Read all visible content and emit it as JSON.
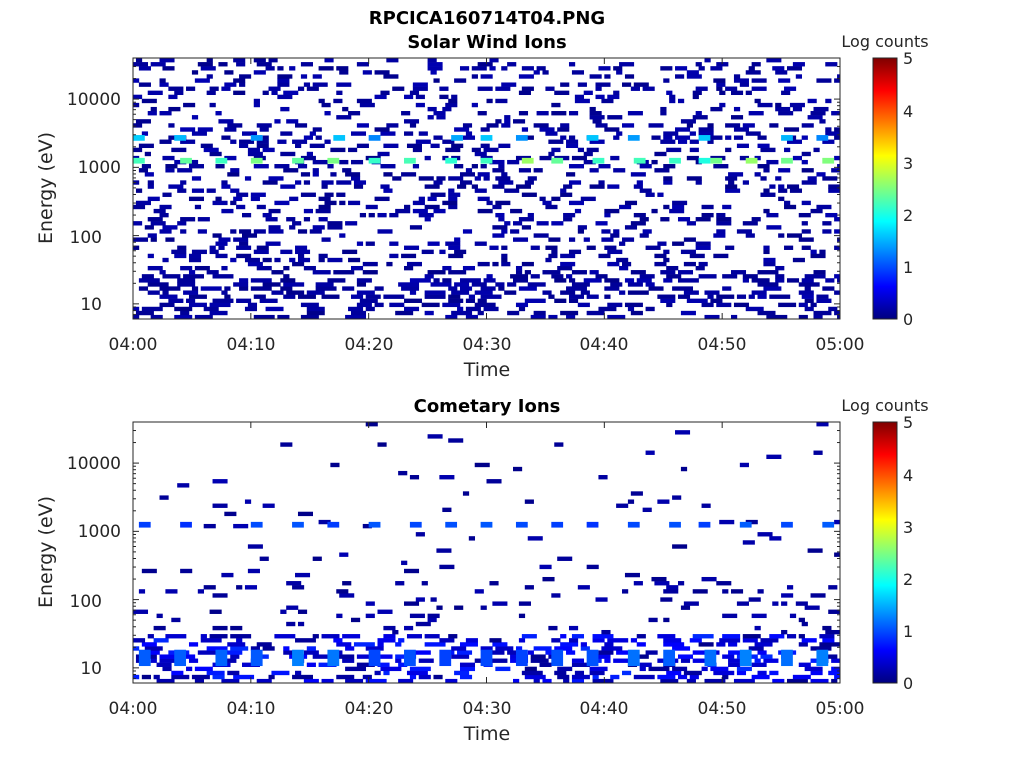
{
  "figure_title": "RPCICA160714T04.PNG",
  "colormap": [
    "#00007f",
    "#0000ff",
    "#007fff",
    "#00ffff",
    "#7fff7f",
    "#ffff00",
    "#ff7f00",
    "#ff0000",
    "#7f0000"
  ],
  "chart_data": [
    {
      "type": "heatmap",
      "title": "Solar Wind Ions",
      "xlabel": "Time",
      "ylabel": "Energy (eV)",
      "x_ticks": [
        "04:00",
        "04:10",
        "04:20",
        "04:30",
        "04:40",
        "04:50",
        "05:00"
      ],
      "y_ticks": [
        "10",
        "100",
        "1000",
        "10000"
      ],
      "y_scale": "log",
      "ylim": [
        6,
        40000
      ],
      "colorbar": {
        "label": "Log counts",
        "ticks": [
          "0",
          "1",
          "2",
          "3",
          "4",
          "5"
        ],
        "range": [
          0,
          5
        ]
      },
      "intensity_rows": [
        {
          "energy_ev": 1250,
          "minutes": [
            0.5,
            4.5,
            7.5,
            10.5,
            14,
            17,
            20.5,
            23.5,
            27,
            30,
            33.5,
            36,
            39.5,
            43,
            46,
            48.5,
            49.5,
            52.5,
            55.5,
            59
          ],
          "level": 2.3
        },
        {
          "energy_ev": 2700,
          "minutes": [
            0.5,
            4,
            10.5,
            17.5,
            20.5,
            27.5,
            30,
            33,
            39,
            42.5,
            48.5,
            55.5,
            58.5
          ],
          "level": 1.5
        }
      ]
    },
    {
      "type": "heatmap",
      "title": "Cometary Ions",
      "xlabel": "Time",
      "ylabel": "Energy (eV)",
      "x_ticks": [
        "04:00",
        "04:10",
        "04:20",
        "04:30",
        "04:40",
        "04:50",
        "05:00"
      ],
      "y_ticks": [
        "10",
        "100",
        "1000",
        "10000"
      ],
      "y_scale": "log",
      "ylim": [
        6,
        40000
      ],
      "colorbar": {
        "label": "Log counts",
        "ticks": [
          "0",
          "1",
          "2",
          "3",
          "4",
          "5"
        ],
        "range": [
          0,
          5
        ]
      },
      "intensity_rows": [
        {
          "energy_ev": 1250,
          "minutes": [
            1,
            4.5,
            10.5,
            14,
            17,
            20.5,
            24,
            27,
            30,
            33,
            36,
            39,
            42.5,
            46,
            48.5,
            52,
            55.5,
            59
          ],
          "level": 1.0
        },
        {
          "energy_ev": 14,
          "minutes": [
            1,
            4,
            7.5,
            10.5,
            14,
            17,
            20.5,
            23.5,
            26.5,
            30,
            33,
            36,
            39,
            42.5,
            45.5,
            49,
            52,
            55.5,
            58.5
          ],
          "level": 1.1
        }
      ]
    }
  ]
}
